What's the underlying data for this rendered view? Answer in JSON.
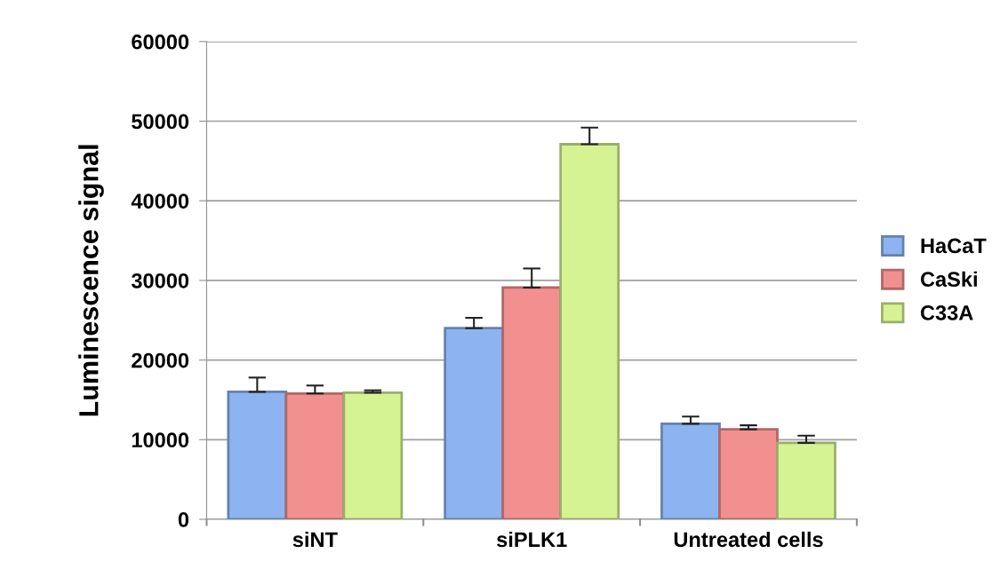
{
  "chart_data": {
    "type": "bar",
    "ylabel": "Luminescence signal",
    "categories": [
      "siNT",
      "siPLK1",
      "Untreated cells"
    ],
    "series": [
      {
        "name": "HaCaT",
        "color": "#8db4f0",
        "values": [
          16000,
          24000,
          12000
        ],
        "errors": [
          [
            16000,
            17800
          ],
          [
            24000,
            25300
          ],
          [
            12000,
            12900
          ]
        ]
      },
      {
        "name": "CaSki",
        "color": "#f29090",
        "values": [
          15800,
          29100,
          11300
        ],
        "errors": [
          [
            15800,
            16800
          ],
          [
            29100,
            31500
          ],
          [
            11300,
            11800
          ]
        ]
      },
      {
        "name": "C33A",
        "color": "#d6f393",
        "values": [
          15900,
          47100,
          9600
        ],
        "errors": [
          [
            15900,
            16200
          ],
          [
            47100,
            49200
          ],
          [
            9600,
            10500
          ]
        ]
      }
    ],
    "ylim": [
      0,
      60000
    ],
    "yticks": [
      0,
      10000,
      20000,
      30000,
      40000,
      50000,
      60000
    ],
    "grid": "y",
    "legend": "right"
  }
}
